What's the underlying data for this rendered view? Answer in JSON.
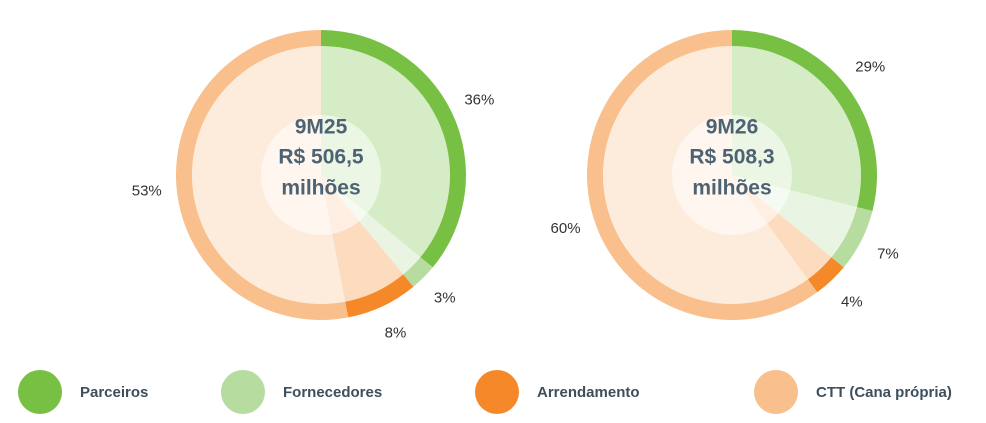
{
  "chart_data": [
    {
      "type": "pie",
      "center_label": [
        "9M25",
        "R$ 506,5",
        "milhões"
      ],
      "categories": [
        "Parceiros",
        "Fornecedores",
        "Arrendamento",
        "CTT (Cana própria)"
      ],
      "colors": [
        "#77c043",
        "#b6dca0",
        "#f5892a",
        "#f9bf8c"
      ],
      "values": [
        36,
        3,
        8,
        53
      ],
      "value_labels": [
        "36%",
        "3%",
        "8%",
        "53%"
      ]
    },
    {
      "type": "pie",
      "center_label": [
        "9M26",
        "R$ 508,3",
        "milhões"
      ],
      "categories": [
        "Parceiros",
        "Fornecedores",
        "Arrendamento",
        "CTT (Cana própria)"
      ],
      "colors": [
        "#77c043",
        "#b6dca0",
        "#f5892a",
        "#f9bf8c"
      ],
      "values": [
        29,
        7,
        4,
        60
      ],
      "value_labels": [
        "29%",
        "7%",
        "4%",
        "60%"
      ]
    }
  ]
}
